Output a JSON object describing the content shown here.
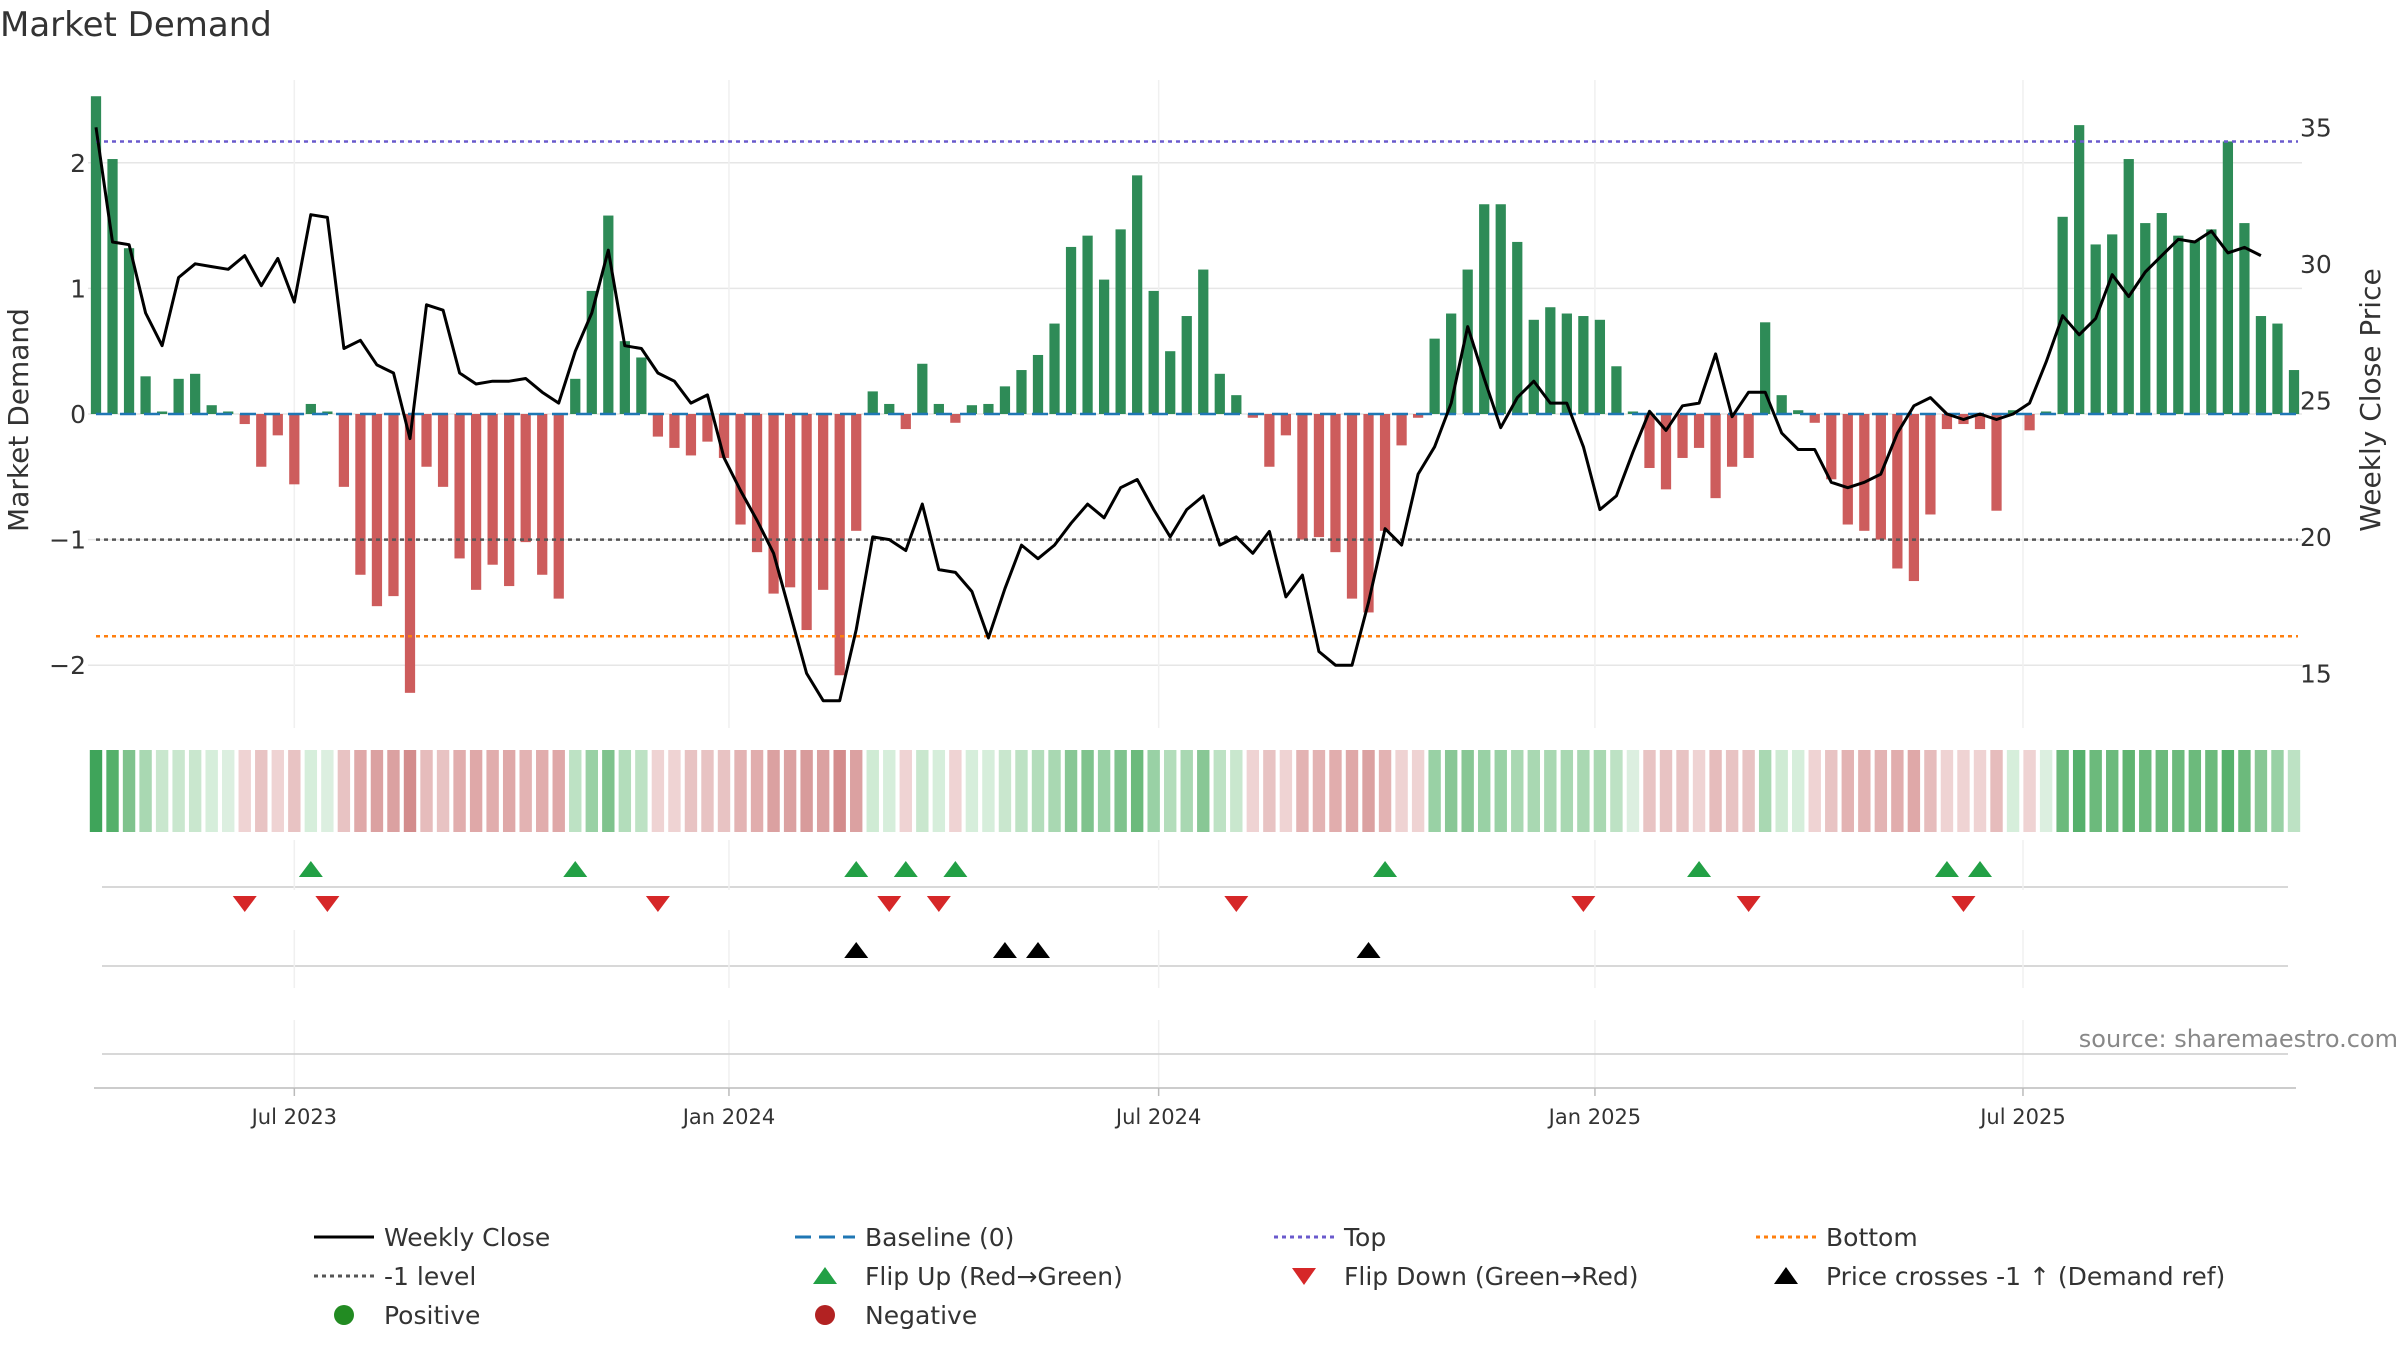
{
  "title": "Market Demand",
  "source_note": "source: sharemaestro.com",
  "colors": {
    "positive_bar": "#2e8b57",
    "negative_bar": "#cd5c5c",
    "close_line": "#000000",
    "baseline": "#1f77b4",
    "top_line": "#6a5acd",
    "bottom_line": "#ff7f0e",
    "minus1_line": "#555555",
    "flip_up": "#22a045",
    "flip_down": "#d62728",
    "cross_marker": "#000000",
    "positive_dot": "#228b22",
    "negative_dot": "#b22222",
    "grid": "#e6e6e6",
    "source": "#888888"
  },
  "chart_data": {
    "type": "bar",
    "title": "Market Demand",
    "ylabel_left": "Market Demand",
    "ylabel_right": "Weekly Close Price",
    "ylim_left": [
      -2.5,
      2.5
    ],
    "ylim_right": [
      13,
      36
    ],
    "left_ticks": [
      {
        "v": 2,
        "label": "2"
      },
      {
        "v": 1,
        "label": "1"
      },
      {
        "v": 0,
        "label": "0"
      },
      {
        "v": -1,
        "label": "−1"
      },
      {
        "v": -2,
        "label": "−2"
      }
    ],
    "right_ticks": [
      {
        "v": 35,
        "label": "35"
      },
      {
        "v": 30,
        "label": "30"
      },
      {
        "v": 25,
        "label": "25"
      },
      {
        "v": 20,
        "label": "20"
      },
      {
        "v": 15,
        "label": "15"
      }
    ],
    "x_ticks": [
      {
        "week": 12,
        "label": "Jul 2023"
      },
      {
        "week": 38.3,
        "label": "Jan 2024"
      },
      {
        "week": 64.3,
        "label": "Jul 2024"
      },
      {
        "week": 90.7,
        "label": "Jan 2025"
      },
      {
        "week": 116.6,
        "label": "Jul 2025"
      }
    ],
    "reference_lines": {
      "top": 2.17,
      "bottom": -1.77,
      "minus1": -1,
      "baseline": 0
    },
    "demand": [
      2.53,
      2.03,
      1.32,
      0.3,
      0.02,
      0.28,
      0.32,
      0.07,
      0.02,
      -0.08,
      -0.42,
      -0.17,
      -0.56,
      0.08,
      0.02,
      -0.58,
      -1.28,
      -1.53,
      -1.45,
      -2.22,
      -0.42,
      -0.58,
      -1.15,
      -1.4,
      -1.2,
      -1.37,
      -1.02,
      -1.28,
      -1.47,
      0.28,
      0.98,
      1.58,
      0.58,
      0.45,
      -0.18,
      -0.27,
      -0.33,
      -0.22,
      -0.35,
      -0.88,
      -1.1,
      -1.43,
      -1.38,
      -1.72,
      -1.4,
      -2.08,
      -0.93,
      0.18,
      0.08,
      -0.12,
      0.4,
      0.08,
      -0.07,
      0.07,
      0.08,
      0.22,
      0.35,
      0.47,
      0.72,
      1.33,
      1.42,
      1.07,
      1.47,
      1.9,
      0.98,
      0.5,
      0.78,
      1.15,
      0.32,
      0.15,
      -0.03,
      -0.42,
      -0.17,
      -1.0,
      -0.98,
      -1.1,
      -1.47,
      -1.58,
      -0.93,
      -0.25,
      -0.03,
      0.6,
      0.8,
      1.15,
      1.67,
      1.67,
      1.37,
      0.75,
      0.85,
      0.8,
      0.78,
      0.75,
      0.38,
      0.02,
      -0.43,
      -0.6,
      -0.35,
      -0.27,
      -0.67,
      -0.42,
      -0.35,
      0.73,
      0.15,
      0.03,
      -0.07,
      -0.52,
      -0.88,
      -0.93,
      -1.0,
      -1.23,
      -1.33,
      -0.8,
      -0.12,
      -0.08,
      -0.12,
      -0.77,
      0.03,
      -0.13,
      0.02,
      1.57,
      2.3,
      1.35,
      1.43,
      2.03,
      1.52,
      1.6,
      1.42,
      1.38,
      1.47,
      2.17,
      1.52,
      0.78,
      0.72,
      0.35
    ],
    "weekly_close": [
      35.0,
      30.8,
      30.7,
      28.2,
      27.0,
      29.5,
      30.0,
      29.9,
      29.8,
      30.3,
      29.2,
      30.2,
      28.6,
      31.8,
      31.7,
      26.9,
      27.2,
      26.3,
      26.0,
      23.6,
      28.5,
      28.3,
      26.0,
      25.6,
      25.7,
      25.7,
      25.8,
      25.3,
      24.9,
      26.8,
      28.2,
      30.5,
      27.0,
      26.9,
      26.0,
      25.7,
      24.9,
      25.2,
      22.9,
      21.7,
      20.6,
      19.4,
      17.2,
      15.0,
      14.0,
      14.0,
      16.6,
      20.0,
      19.9,
      19.5,
      21.2,
      18.8,
      18.7,
      18.0,
      16.3,
      18.1,
      19.7,
      19.2,
      19.7,
      20.5,
      21.2,
      20.7,
      21.8,
      22.1,
      21.0,
      20.0,
      21.0,
      21.5,
      19.7,
      20.0,
      19.4,
      20.2,
      17.8,
      18.6,
      15.8,
      15.3,
      15.3,
      17.6,
      20.3,
      19.7,
      22.3,
      23.3,
      24.9,
      27.7,
      25.8,
      24.0,
      25.1,
      25.7,
      24.9,
      24.9,
      23.3,
      21.0,
      21.5,
      23.1,
      24.6,
      23.9,
      24.8,
      24.9,
      26.7,
      24.4,
      25.3,
      25.3,
      23.8,
      23.2,
      23.2,
      22.0,
      21.8,
      22.0,
      22.3,
      23.8,
      24.8,
      25.1,
      24.5,
      24.3,
      24.5,
      24.3,
      24.5,
      24.9,
      26.4,
      28.1,
      27.4,
      28.0,
      29.6,
      28.8,
      29.7,
      30.3,
      30.9,
      30.8,
      31.2,
      30.4,
      30.6,
      30.3
    ],
    "demand_strip": [
      "#3fa45a",
      "#55b06b",
      "#7fc38d",
      "#a9d8b2",
      "#c9e7ce",
      "#c9e7ce",
      "#c9e7ce",
      "#d6eedb",
      "#dcefe0",
      "#efd3d3",
      "#e8c3c3",
      "#efd3d3",
      "#e8c3c3",
      "#d6eedb",
      "#dcefe0",
      "#e8c3c3",
      "#dfa8a8",
      "#dba1a1",
      "#dba1a1",
      "#d38c8c",
      "#e6bcbc",
      "#e8c3c3",
      "#e1adad",
      "#dfa8a8",
      "#e1adad",
      "#dfa8a8",
      "#e3b3b3",
      "#e1adad",
      "#dfa8a8",
      "#bde2c4",
      "#99d1a5",
      "#7fc38d",
      "#b3ddbb",
      "#bde2c4",
      "#efd3d3",
      "#efd3d3",
      "#e8c3c3",
      "#e8c3c3",
      "#e8c3c3",
      "#e3b3b3",
      "#e1adad",
      "#dba1a1",
      "#dba1a1",
      "#d89b9b",
      "#dba1a1",
      "#d38c8c",
      "#dba1a1",
      "#cfebd4",
      "#d6eedb",
      "#efd3d3",
      "#c9e7ce",
      "#d6eedb",
      "#efd3d3",
      "#d6eedb",
      "#d6eedb",
      "#c9e7ce",
      "#bde2c4",
      "#b3ddbb",
      "#a9d8b2",
      "#88c795",
      "#7fc38d",
      "#99d1a5",
      "#7fc38d",
      "#6cba7c",
      "#99d1a5",
      "#b3ddbb",
      "#a9d8b2",
      "#88c795",
      "#bde2c4",
      "#c9e7ce",
      "#efd3d3",
      "#e8c3c3",
      "#efd3d3",
      "#e3b3b3",
      "#e3b3b3",
      "#e1adad",
      "#dfa8a8",
      "#dba1a1",
      "#e3b3b3",
      "#efd3d3",
      "#efd3d3",
      "#99d1a5",
      "#88c795",
      "#88c795",
      "#99d1a5",
      "#99d1a5",
      "#a9d8b2",
      "#a9d8b2",
      "#a9d8b2",
      "#a9d8b2",
      "#a9d8b2",
      "#a9d8b2",
      "#bde2c4",
      "#dcefe0",
      "#e8c3c3",
      "#e8c3c3",
      "#e8c3c3",
      "#efd3d3",
      "#e6bcbc",
      "#e8c3c3",
      "#e8c3c3",
      "#a9d8b2",
      "#cfebd4",
      "#d6eedb",
      "#efd3d3",
      "#e8c3c3",
      "#e3b3b3",
      "#e3b3b3",
      "#e3b3b3",
      "#e1adad",
      "#dfa8a8",
      "#e6bcbc",
      "#efd3d3",
      "#efd3d3",
      "#efd3d3",
      "#e6bcbc",
      "#d6eedb",
      "#efd3d3",
      "#dcefe0",
      "#6cba7c",
      "#55b06b",
      "#6cba7c",
      "#6cba7c",
      "#5fb470",
      "#6cba7c",
      "#6cba7c",
      "#6cba7c",
      "#6cba7c",
      "#6cba7c",
      "#55b06b",
      "#6cba7c",
      "#88c795",
      "#99d1a5",
      "#bde2c4"
    ],
    "flip_up_weeks": [
      13,
      29,
      46,
      49,
      52,
      78,
      97,
      112,
      114
    ],
    "flip_down_weeks": [
      9,
      14,
      34,
      48,
      51,
      69,
      90,
      100,
      113
    ],
    "price_cross_weeks": [
      46,
      55,
      57,
      77
    ]
  },
  "legend": [
    {
      "key": "close",
      "label": "Weekly Close",
      "style": "line-solid"
    },
    {
      "key": "baseline",
      "label": "Baseline (0)",
      "style": "line-dashed"
    },
    {
      "key": "top",
      "label": "Top",
      "style": "line-dotted"
    },
    {
      "key": "bottom",
      "label": "Bottom",
      "style": "line-dotted"
    },
    {
      "key": "minus1",
      "label": "-1 level",
      "style": "line-dotted"
    },
    {
      "key": "flipup",
      "label": "Flip Up (Red→Green)",
      "style": "triangle-up"
    },
    {
      "key": "flipdown",
      "label": "Flip Down (Green→Red)",
      "style": "triangle-down"
    },
    {
      "key": "cross",
      "label": "Price crosses -1 ↑ (Demand ref)",
      "style": "triangle-up"
    },
    {
      "key": "positive",
      "label": "Positive",
      "style": "dot"
    },
    {
      "key": "negative",
      "label": "Negative",
      "style": "dot"
    }
  ]
}
